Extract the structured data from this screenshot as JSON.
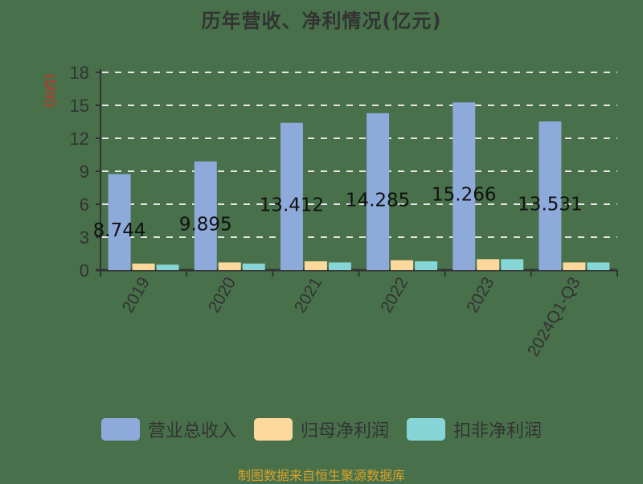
{
  "title": "历年营收、净利情况(亿元)",
  "unit_label": "(亿元)",
  "footer": "制图数据来自恒生聚源数据库",
  "colors": {
    "background": "#48714b",
    "revenue": "#8eaadb",
    "net_profit": "#fdd89c",
    "deducted_profit": "#86d6d8",
    "axis": "#333333",
    "grid": "#e6e6e6",
    "unit": "#e8201a",
    "footer": "#d9a12a"
  },
  "legend": [
    {
      "label": "营业总收入",
      "color": "#8eaadb"
    },
    {
      "label": "归母净利润",
      "color": "#fdd89c"
    },
    {
      "label": "扣非净利润",
      "color": "#86d6d8"
    }
  ],
  "chart_data": {
    "type": "bar",
    "title": "历年营收、净利情况(亿元)",
    "xlabel": "",
    "ylabel": "(亿元)",
    "ylim": [
      0,
      18
    ],
    "yticks": [
      0,
      3,
      6,
      9,
      12,
      15,
      18
    ],
    "grid": true,
    "legend_position": "bottom",
    "categories": [
      "2019",
      "2020",
      "2021",
      "2022",
      "2023",
      "2024Q1-Q3"
    ],
    "series": [
      {
        "name": "营业总收入",
        "values": [
          8.744,
          9.895,
          13.412,
          14.285,
          15.266,
          13.531
        ],
        "data_labels": [
          "8.744",
          "9.895",
          "13.412",
          "14.285",
          "15.266",
          "13.531"
        ]
      },
      {
        "name": "归母净利润",
        "values": [
          0.6,
          0.7,
          0.8,
          0.9,
          1.0,
          0.7
        ]
      },
      {
        "name": "扣非净利润",
        "values": [
          0.5,
          0.6,
          0.7,
          0.8,
          1.0,
          0.7
        ]
      }
    ]
  }
}
